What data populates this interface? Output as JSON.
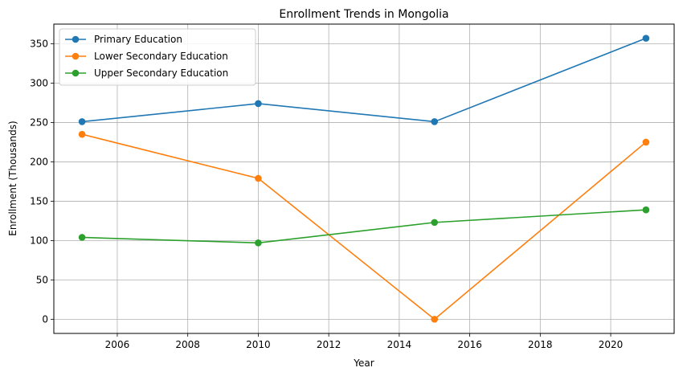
{
  "chart_data": {
    "type": "line",
    "title": "Enrollment Trends in Mongolia",
    "xlabel": "Year",
    "ylabel": "Enrollment (Thousands)",
    "x": [
      2005,
      2010,
      2015,
      2021
    ],
    "xlim": [
      2004.2,
      2021.8
    ],
    "ylim": [
      -18,
      375
    ],
    "xticks": [
      2006,
      2008,
      2010,
      2012,
      2014,
      2016,
      2018,
      2020
    ],
    "yticks": [
      0,
      50,
      100,
      150,
      200,
      250,
      300,
      350
    ],
    "grid": true,
    "legend_position": "top-left",
    "series": [
      {
        "name": "Primary Education",
        "color": "#1f77b4",
        "values": [
          251,
          274,
          251,
          357
        ]
      },
      {
        "name": "Lower Secondary Education",
        "color": "#ff7f0e",
        "values": [
          235,
          179,
          0,
          225
        ]
      },
      {
        "name": "Upper Secondary Education",
        "color": "#2ca02c",
        "values": [
          104,
          97,
          123,
          139
        ]
      }
    ]
  }
}
